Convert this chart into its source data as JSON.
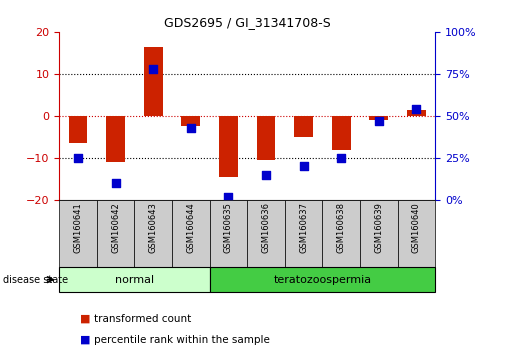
{
  "title": "GDS2695 / GI_31341708-S",
  "samples": [
    "GSM160641",
    "GSM160642",
    "GSM160643",
    "GSM160644",
    "GSM160635",
    "GSM160636",
    "GSM160637",
    "GSM160638",
    "GSM160639",
    "GSM160640"
  ],
  "transformed_count": [
    -6.5,
    -11.0,
    16.5,
    -2.5,
    -14.5,
    -10.5,
    -5.0,
    -8.0,
    -1.0,
    1.5
  ],
  "percentile_rank": [
    25,
    10,
    78,
    43,
    2,
    15,
    20,
    25,
    47,
    54
  ],
  "ylim_left": [
    -20,
    20
  ],
  "ylim_right": [
    0,
    100
  ],
  "left_yticks": [
    -20,
    -10,
    0,
    10,
    20
  ],
  "right_yticks": [
    0,
    25,
    50,
    75,
    100
  ],
  "left_tick_color": "#cc0000",
  "right_tick_color": "#0000cc",
  "bar_color": "#cc2200",
  "dot_color": "#0000cc",
  "normal_label": "normal",
  "terato_label": "teratozoospermia",
  "normal_color": "#ccffcc",
  "terato_color": "#44cc44",
  "disease_label": "disease state",
  "legend_bar_label": "transformed count",
  "legend_dot_label": "percentile rank within the sample",
  "grid_color": "#000000",
  "zero_line_color": "#cc0000",
  "background_color": "#ffffff",
  "sample_box_color": "#cccccc",
  "bar_width": 0.5,
  "dot_size": 28,
  "title_fontsize": 9,
  "tick_fontsize": 8,
  "sample_fontsize": 6,
  "disease_fontsize": 8,
  "legend_fontsize": 7.5
}
